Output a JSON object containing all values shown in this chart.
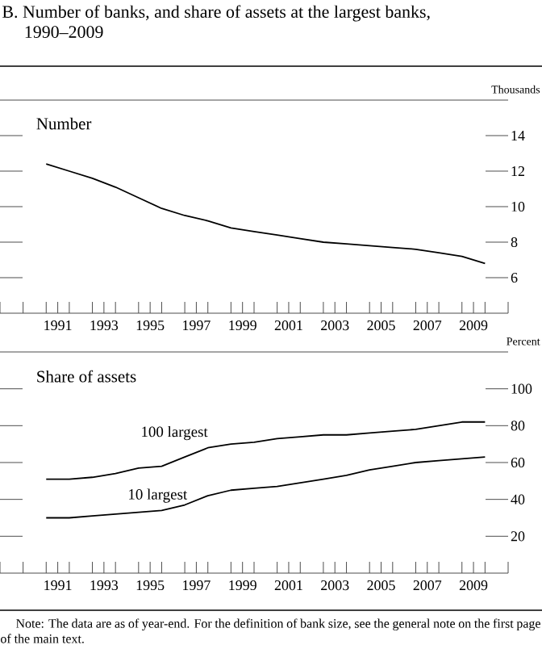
{
  "chart_data": [
    {
      "type": "line",
      "title": "B. Number of banks, and share of assets at the largest banks, 1990–2009",
      "subtitle": "Number",
      "ylabel": "Thousands",
      "x": [
        1991,
        1992,
        1993,
        1994,
        1995,
        1996,
        1997,
        1998,
        1999,
        2000,
        2001,
        2002,
        2003,
        2004,
        2005,
        2006,
        2007,
        2008,
        2009,
        2010
      ],
      "series": [
        {
          "color": "#000000",
          "values": [
            12.4,
            12.0,
            11.6,
            11.1,
            10.5,
            9.9,
            9.5,
            9.2,
            8.8,
            8.6,
            8.4,
            8.2,
            8.0,
            7.9,
            7.8,
            7.7,
            7.6,
            7.4,
            7.2,
            6.8
          ]
        }
      ],
      "xlim": [
        1989,
        2011
      ],
      "xticks": [
        {
          "value": 1989,
          "label": null
        },
        {
          "value": 1990,
          "label": null
        },
        {
          "value": 1991,
          "label": null
        },
        {
          "value": 1992,
          "label": null
        },
        {
          "value": 1993,
          "label": null
        },
        {
          "value": 1994,
          "label": null
        },
        {
          "value": 1995,
          "label": null
        },
        {
          "value": 1996,
          "label": null
        },
        {
          "value": 1997,
          "label": null
        },
        {
          "value": 1998,
          "label": null
        },
        {
          "value": 1999,
          "label": null
        },
        {
          "value": 2000,
          "label": null
        },
        {
          "value": 2001,
          "label": null
        },
        {
          "value": 2002,
          "label": null
        },
        {
          "value": 2003,
          "label": null
        },
        {
          "value": 2004,
          "label": null
        },
        {
          "value": 2005,
          "label": null
        },
        {
          "value": 2006,
          "label": null
        },
        {
          "value": 2007,
          "label": null
        },
        {
          "value": 2008,
          "label": null
        },
        {
          "value": 2009,
          "label": null
        },
        {
          "value": 2010,
          "label": null
        },
        {
          "value": 2011,
          "label": null
        },
        {
          "value": 1991.5,
          "label": "1991"
        },
        {
          "value": 1993.5,
          "label": "1993"
        },
        {
          "value": 1995.5,
          "label": "1995"
        },
        {
          "value": 1997.5,
          "label": "1997"
        },
        {
          "value": 1999.5,
          "label": "1999"
        },
        {
          "value": 2001.5,
          "label": "2001"
        },
        {
          "value": 2003.5,
          "label": "2003"
        },
        {
          "value": 2005.5,
          "label": "2005"
        },
        {
          "value": 2007.5,
          "label": "2007"
        },
        {
          "value": 2009.5,
          "label": "2009"
        }
      ],
      "ylim": [
        4,
        16
      ],
      "yticks": [
        6,
        8,
        10,
        12,
        14
      ],
      "line_style": "solid",
      "marker": "none"
    },
    {
      "type": "line",
      "title": "Share of assets",
      "ylabel": "Percent",
      "x": [
        1991,
        1992,
        1993,
        1994,
        1995,
        1996,
        1997,
        1998,
        1999,
        2000,
        2001,
        2002,
        2003,
        2004,
        2005,
        2006,
        2007,
        2008,
        2009,
        2010
      ],
      "series": [
        {
          "name": "100 largest",
          "color": "#000000",
          "values": [
            51,
            51,
            52,
            54,
            57,
            58,
            63,
            68,
            70,
            71,
            73,
            74,
            75,
            75,
            76,
            77,
            78,
            80,
            82,
            82
          ]
        },
        {
          "name": "10 largest",
          "color": "#000000",
          "values": [
            30,
            30,
            31,
            32,
            33,
            34,
            37,
            42,
            45,
            46,
            47,
            49,
            51,
            53,
            56,
            58,
            60,
            61,
            62,
            63
          ]
        }
      ],
      "xlim": [
        1989,
        2011
      ],
      "xticks": [
        {
          "value": 1989,
          "label": null
        },
        {
          "value": 1990,
          "label": null
        },
        {
          "value": 1991,
          "label": null
        },
        {
          "value": 1992,
          "label": null
        },
        {
          "value": 1993,
          "label": null
        },
        {
          "value": 1994,
          "label": null
        },
        {
          "value": 1995,
          "label": null
        },
        {
          "value": 1996,
          "label": null
        },
        {
          "value": 1997,
          "label": null
        },
        {
          "value": 1998,
          "label": null
        },
        {
          "value": 1999,
          "label": null
        },
        {
          "value": 2000,
          "label": null
        },
        {
          "value": 2001,
          "label": null
        },
        {
          "value": 2002,
          "label": null
        },
        {
          "value": 2003,
          "label": null
        },
        {
          "value": 2004,
          "label": null
        },
        {
          "value": 2005,
          "label": null
        },
        {
          "value": 2006,
          "label": null
        },
        {
          "value": 2007,
          "label": null
        },
        {
          "value": 2008,
          "label": null
        },
        {
          "value": 2009,
          "label": null
        },
        {
          "value": 2010,
          "label": null
        },
        {
          "value": 2011,
          "label": null
        },
        {
          "value": 1991.5,
          "label": "1991"
        },
        {
          "value": 1993.5,
          "label": "1993"
        },
        {
          "value": 1995.5,
          "label": "1995"
        },
        {
          "value": 1997.5,
          "label": "1997"
        },
        {
          "value": 1999.5,
          "label": "1999"
        },
        {
          "value": 2001.5,
          "label": "2001"
        },
        {
          "value": 2003.5,
          "label": "2003"
        },
        {
          "value": 2005.5,
          "label": "2005"
        },
        {
          "value": 2007.5,
          "label": "2007"
        },
        {
          "value": 2009.5,
          "label": "2009"
        }
      ],
      "ylim": [
        0,
        120
      ],
      "yticks": [
        20,
        40,
        60,
        80,
        100
      ],
      "line_style": "solid",
      "marker": "none",
      "annotations": [
        "Note: The data are as of year-end. For the definition of bank size, see the general note on the first page of the main text."
      ]
    }
  ]
}
